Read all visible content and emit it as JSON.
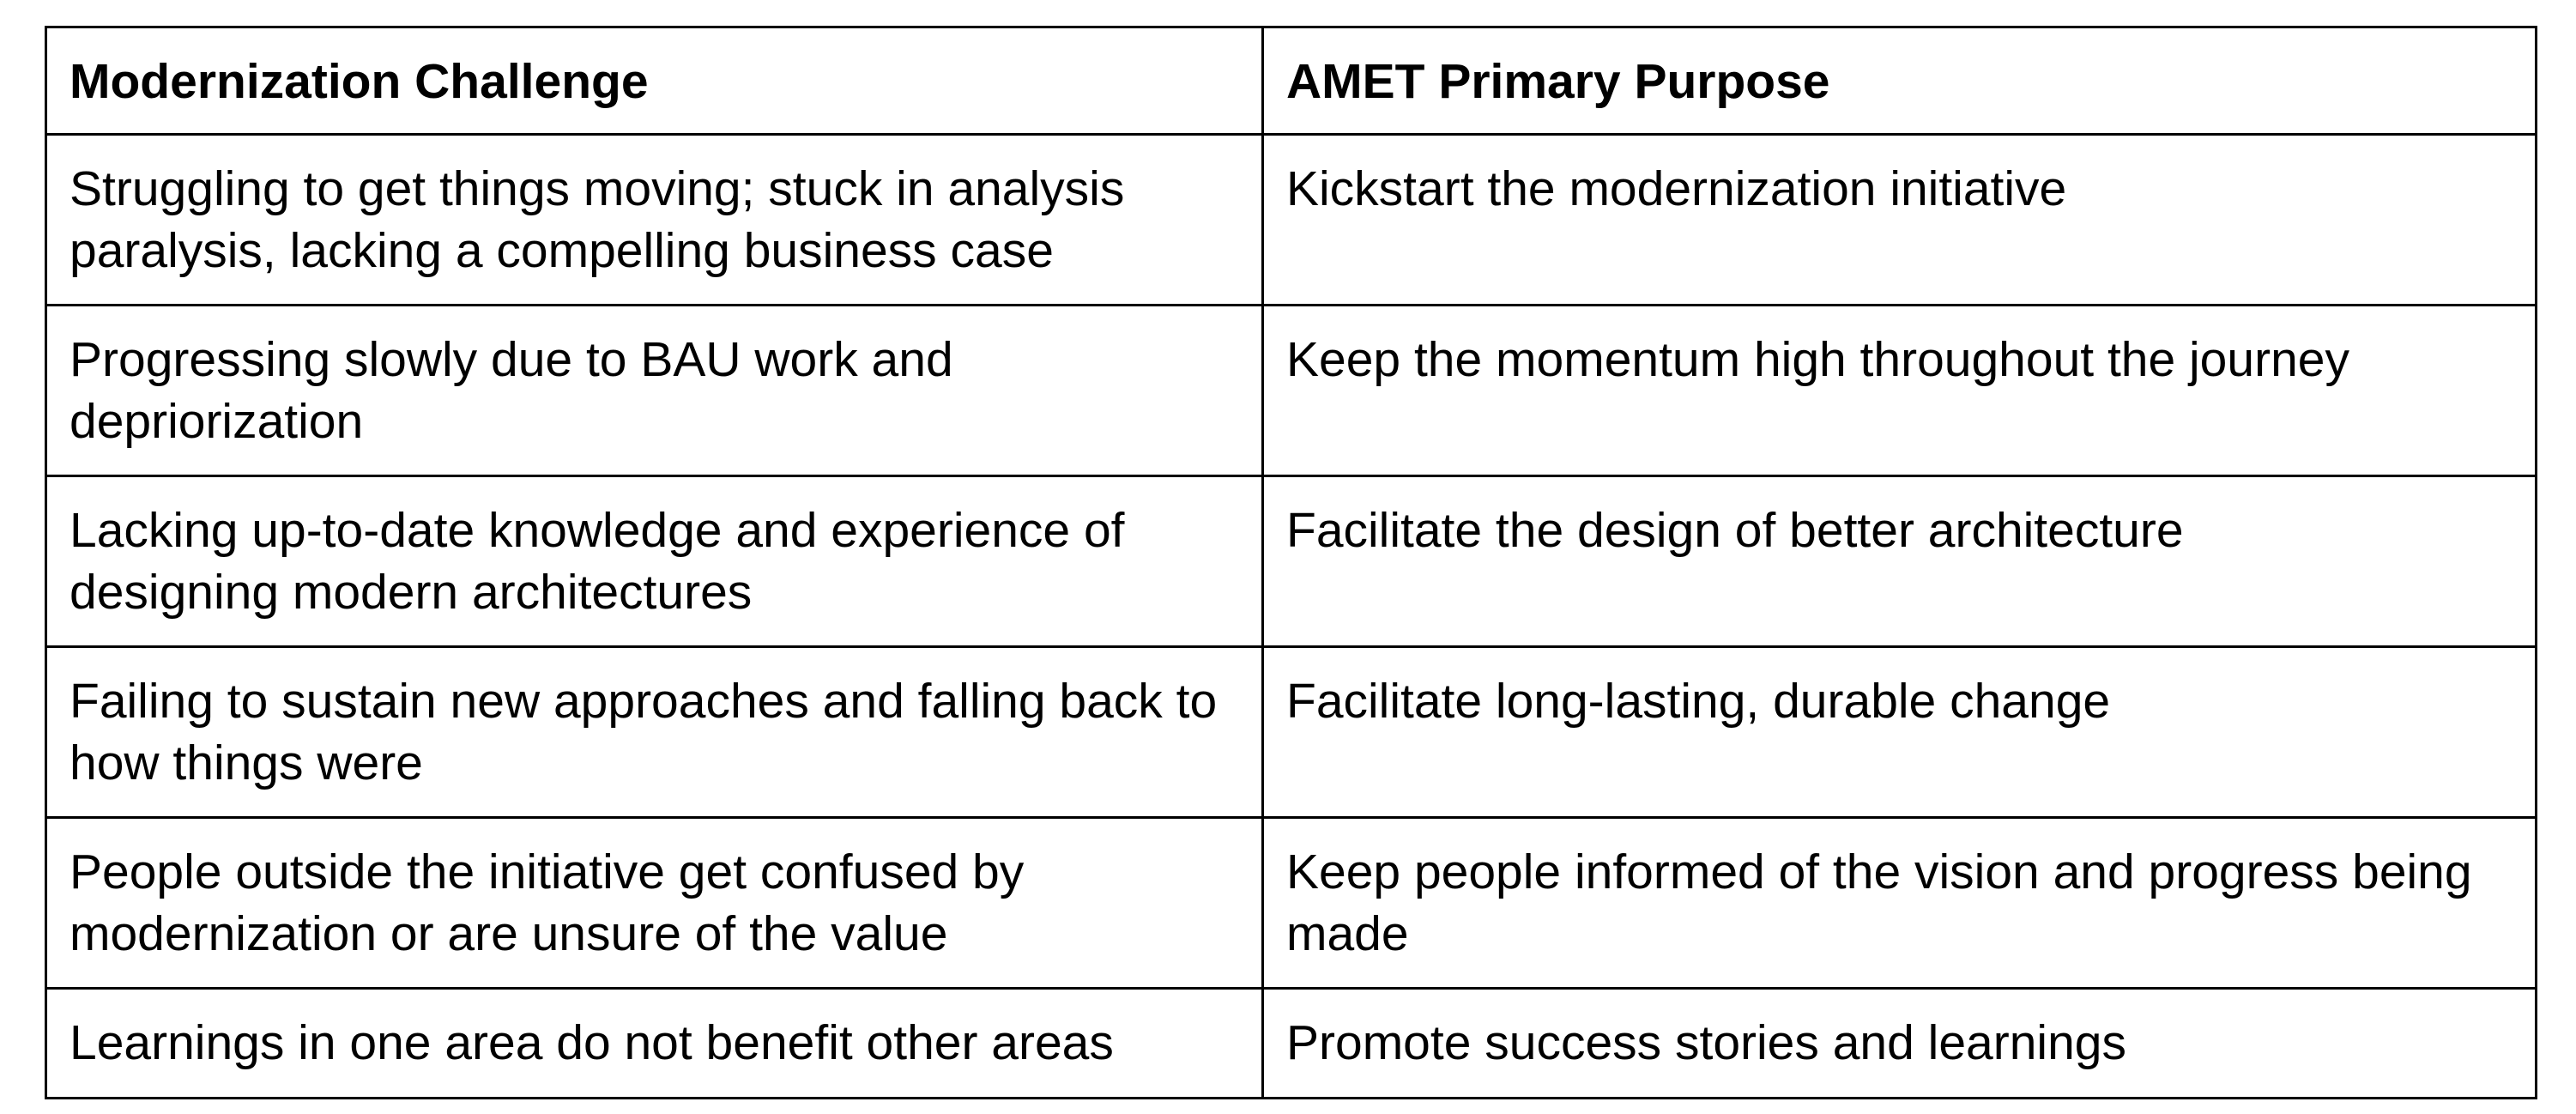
{
  "table": {
    "headers": [
      "Modernization Challenge",
      "AMET Primary Purpose"
    ],
    "rows": [
      [
        "Struggling to get things moving; stuck in analysis paralysis, lacking a compelling business case",
        "Kickstart the modernization initiative"
      ],
      [
        "Progressing slowly due to BAU work and depriorization",
        "Keep the momentum high throughout the journey"
      ],
      [
        "Lacking up-to-date knowledge and experience of designing modern architectures",
        "Facilitate the design of better architecture"
      ],
      [
        "Failing to sustain new approaches and falling back to how things were",
        "Facilitate long-lasting, durable change"
      ],
      [
        "People outside the initiative get confused by modernization or are unsure of the value",
        "Keep people informed of the vision and progress being made"
      ],
      [
        "Learnings in one area do not benefit other areas",
        "Promote success stories and learnings"
      ]
    ]
  }
}
